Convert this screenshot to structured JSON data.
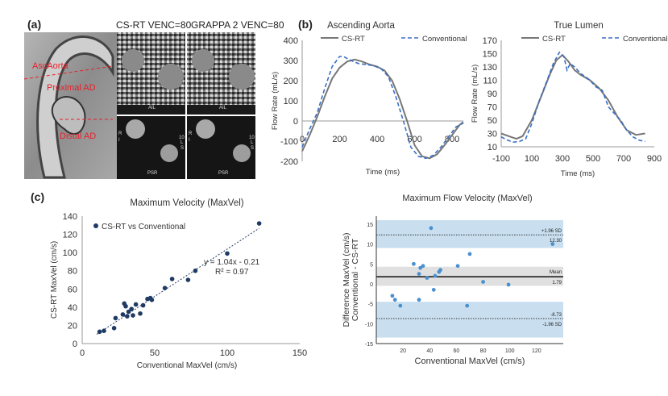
{
  "panels": {
    "a": "(a)",
    "b": "(b)",
    "c": "(c)"
  },
  "mri": {
    "col1_title": "CS-RT VENC=80",
    "col2_title": "GRAPPA 2 VENC=80",
    "region_labels": [
      "AscAorta",
      "Proximal AD",
      "Distal AD"
    ],
    "top_tile_labels": [
      "AIL",
      "AIL"
    ],
    "bottom_tile_labels": [
      "PSR",
      "PSR"
    ],
    "side_labels": {
      "r": "R",
      "i": "I",
      "l": "L",
      "s": "S",
      "scale": "10"
    }
  },
  "colors": {
    "cs_rt": "#777777",
    "conventional": "#3a6fc4",
    "scatter_point": "#1f3a63",
    "ba_point": "#4a90d0",
    "ba_band": "#c9dff0",
    "ba_mean_band": "#e0e0e0",
    "region_label": "#e8202a"
  },
  "chart_data": [
    {
      "type": "line",
      "title": "Ascending Aorta",
      "xlabel": "Time (ms)",
      "ylabel": "Flow Rate (mL/s)",
      "xlim": [
        0,
        860
      ],
      "ylim": [
        -200,
        400
      ],
      "xticks": [
        0,
        200,
        400,
        600,
        800
      ],
      "yticks": [
        -200,
        -100,
        0,
        100,
        200,
        300,
        400
      ],
      "legend": "top",
      "series": [
        {
          "name": "CS-RT",
          "style": "solid",
          "x": [
            0,
            40,
            80,
            120,
            160,
            200,
            240,
            280,
            320,
            360,
            400,
            440,
            480,
            520,
            560,
            600,
            640,
            680,
            720,
            760,
            800,
            840,
            860
          ],
          "y": [
            -150,
            -70,
            20,
            120,
            210,
            265,
            295,
            305,
            295,
            280,
            270,
            250,
            200,
            110,
            0,
            -120,
            -175,
            -185,
            -165,
            -120,
            -70,
            -20,
            -5
          ]
        },
        {
          "name": "Conventional",
          "style": "dashed",
          "x": [
            0,
            40,
            80,
            120,
            160,
            200,
            220,
            260,
            300,
            340,
            380,
            420,
            460,
            500,
            540,
            580,
            620,
            660,
            700,
            740,
            780,
            820,
            860
          ],
          "y": [
            -130,
            -40,
            40,
            160,
            270,
            320,
            320,
            300,
            285,
            280,
            275,
            260,
            220,
            120,
            0,
            -130,
            -175,
            -185,
            -170,
            -130,
            -80,
            -30,
            -10
          ]
        }
      ]
    },
    {
      "type": "line",
      "title": "True Lumen",
      "xlabel": "Time (ms)",
      "ylabel": "Flow Rate (mL/s)",
      "xlim": [
        -100,
        900
      ],
      "ylim": [
        10,
        170
      ],
      "xticks": [
        -100,
        100,
        300,
        500,
        700,
        900
      ],
      "yticks": [
        10,
        30,
        50,
        70,
        90,
        110,
        130,
        150,
        170
      ],
      "legend": "top",
      "series": [
        {
          "name": "CS-RT",
          "style": "solid",
          "x": [
            -100,
            -40,
            0,
            40,
            100,
            160,
            220,
            260,
            300,
            340,
            380,
            420,
            480,
            540,
            600,
            660,
            720,
            780,
            840
          ],
          "y": [
            30,
            25,
            22,
            26,
            50,
            85,
            120,
            140,
            148,
            138,
            125,
            118,
            110,
            98,
            80,
            55,
            35,
            28,
            30
          ]
        },
        {
          "name": "Conventional",
          "style": "dashed",
          "x": [
            -100,
            -60,
            -20,
            20,
            60,
            100,
            150,
            200,
            240,
            280,
            310,
            330,
            350,
            380,
            420,
            470,
            520,
            560,
            600,
            640,
            680,
            720,
            760,
            800,
            840
          ],
          "y": [
            25,
            20,
            17,
            18,
            22,
            45,
            80,
            110,
            135,
            152,
            145,
            125,
            135,
            130,
            120,
            112,
            100,
            95,
            70,
            60,
            50,
            35,
            25,
            20,
            18
          ]
        }
      ]
    },
    {
      "type": "scatter",
      "title": "Maximum Velocity (MaxVel)",
      "xlabel": "Conventional MaxVel (cm/s)",
      "ylabel": "CS-RT MaxVel (cm/s)",
      "xlim": [
        0,
        150
      ],
      "ylim": [
        0,
        140
      ],
      "xticks": [
        0,
        50,
        100,
        150
      ],
      "yticks": [
        0,
        20,
        40,
        60,
        80,
        100,
        120,
        140
      ],
      "legend": "top-left",
      "series": [
        {
          "name": "CS-RT vs Conventional",
          "x": [
            12,
            15,
            22,
            23,
            28,
            29,
            30,
            31,
            32,
            34,
            35,
            37,
            40,
            42,
            45,
            47,
            48,
            57,
            62,
            73,
            78,
            100,
            122
          ],
          "y": [
            13,
            14,
            17,
            28,
            32,
            44,
            41,
            30,
            35,
            38,
            31,
            43,
            33,
            42,
            49,
            50,
            48,
            61,
            71,
            70,
            80,
            99,
            132
          ]
        }
      ],
      "fit": {
        "slope": 1.04,
        "intercept": -0.21
      },
      "annotations": [
        "y = 1.04x - 0.21",
        "R² = 0.97"
      ]
    },
    {
      "type": "scatter",
      "title": "Maximum Flow Velocity (MaxVel)",
      "xlabel": "Conventional MaxVel (cm/s)",
      "ylabel": "Difference MaxVel (cm/s)\nConventional - CS-RT",
      "xlim": [
        0,
        140
      ],
      "ylim": [
        -15,
        17
      ],
      "xticks": [
        20,
        40,
        60,
        80,
        100,
        120
      ],
      "yticks": [
        -15,
        -10,
        -5,
        0,
        5,
        10,
        15
      ],
      "mean": 1.79,
      "upper_loa": 12.3,
      "lower_loa": -8.73,
      "annotations": {
        "upper": "+1.96 SD",
        "upper_value": "12.30",
        "mean": "Mean",
        "mean_value": "1.79",
        "lower_value": "-8.73",
        "lower": "-1.96 SD"
      },
      "series": [
        {
          "name": "",
          "x": [
            12,
            14,
            18,
            28,
            32,
            33,
            35,
            38,
            41,
            44,
            47,
            48,
            61,
            68,
            70,
            80,
            99,
            132,
            32,
            43
          ],
          "y": [
            -3,
            -4,
            -5.5,
            5,
            2.5,
            4,
            4.5,
            1.5,
            14,
            2,
            3,
            3.5,
            4.5,
            -5.5,
            7.5,
            0.5,
            -0.2,
            10,
            -4,
            -1.5
          ]
        }
      ]
    }
  ]
}
